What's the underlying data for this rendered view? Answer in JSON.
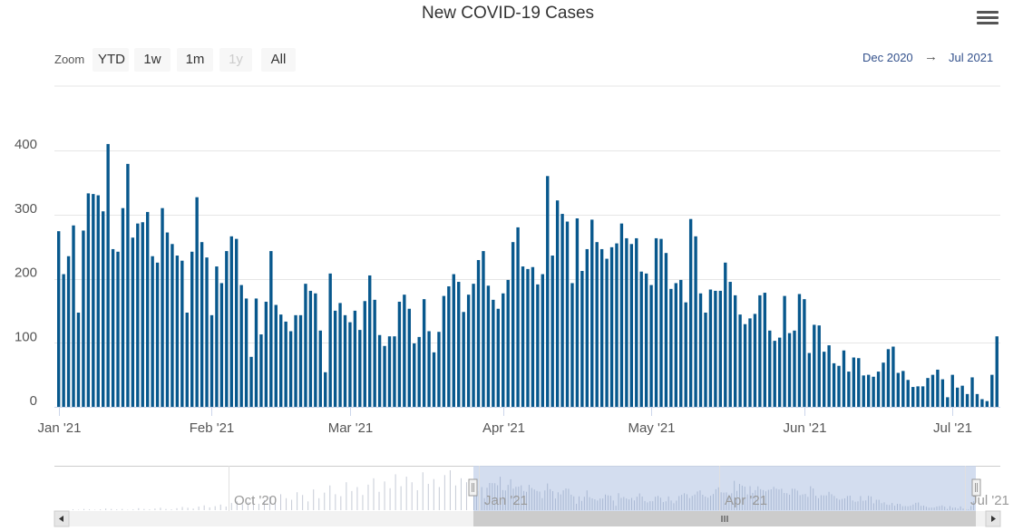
{
  "chart_data": {
    "type": "bar",
    "title": "New COVID-19 Cases",
    "y_ticks": [
      "0",
      "100",
      "200",
      "300",
      "400"
    ],
    "ylim": [
      0,
      400
    ],
    "x_start": "2021-01-01",
    "x_ticks": [
      "Jan '21",
      "Feb '21",
      "Mar '21",
      "Apr '21",
      "May '21",
      "Jun '21",
      "Jul '21"
    ],
    "values": [
      274,
      207,
      235,
      283,
      147,
      275,
      333,
      332,
      330,
      305,
      410,
      246,
      242,
      310,
      379,
      264,
      286,
      288,
      304,
      235,
      225,
      310,
      272,
      254,
      236,
      228,
      147,
      242,
      327,
      257,
      233,
      143,
      219,
      193,
      243,
      266,
      262,
      190,
      169,
      78,
      169,
      113,
      164,
      243,
      159,
      144,
      133,
      118,
      143,
      143,
      192,
      181,
      177,
      119,
      54,
      208,
      150,
      162,
      143,
      132,
      150,
      120,
      165,
      205,
      167,
      112,
      95,
      110,
      110,
      164,
      175,
      153,
      99,
      109,
      168,
      118,
      85,
      117,
      173,
      188,
      207,
      195,
      148,
      175,
      192,
      229,
      243,
      189,
      167,
      153,
      177,
      198,
      257,
      280,
      219,
      215,
      218,
      191,
      207,
      360,
      236,
      322,
      301,
      289,
      193,
      294,
      212,
      246,
      292,
      257,
      246,
      231,
      249,
      255,
      286,
      263,
      254,
      263,
      211,
      208,
      190,
      263,
      262,
      240,
      184,
      193,
      198,
      163,
      293,
      266,
      177,
      147,
      183,
      181,
      181,
      225,
      195,
      174,
      144,
      129,
      138,
      145,
      174,
      178,
      119,
      103,
      108,
      173,
      115,
      119,
      176,
      168,
      84,
      128,
      127,
      86,
      96,
      68,
      64,
      88,
      55,
      77,
      76,
      49,
      50,
      47,
      55,
      69,
      90,
      94,
      53,
      56,
      42,
      31,
      32,
      32,
      45,
      50,
      58,
      43,
      15,
      50,
      30,
      33,
      20,
      46,
      20,
      12,
      9,
      50,
      110
    ]
  },
  "toolbar": {
    "zoom_label": "Zoom",
    "buttons": [
      "YTD",
      "1w",
      "1m",
      "1y",
      "All"
    ],
    "range_from": "Dec 2020",
    "range_arrow": "→",
    "range_to": "Jul 2021"
  },
  "navigator": {
    "tick_labels": [
      "Oct '20",
      "Jan '21",
      "Apr '21",
      "Jul '21"
    ],
    "history": [
      2,
      1,
      3,
      2,
      1,
      2,
      4,
      3,
      2,
      3,
      1,
      2,
      5,
      3,
      2,
      4,
      6,
      3,
      2,
      5,
      8,
      6,
      4,
      9,
      12,
      7,
      10,
      14,
      9,
      18,
      22,
      15,
      20,
      28,
      16,
      25,
      34,
      20,
      40,
      30,
      26,
      45,
      38,
      22,
      52,
      30,
      44,
      62,
      40,
      35,
      70,
      48,
      58,
      38,
      64,
      80,
      46,
      72,
      55,
      90,
      60,
      84,
      70,
      50,
      95,
      66,
      78,
      58,
      88,
      100,
      62,
      80,
      70
    ]
  },
  "colors": {
    "bar": "#08588d",
    "grid": "#e6e6e6",
    "nav_fill": "#c4d1ea",
    "nav_line": "#c6cbd6"
  }
}
